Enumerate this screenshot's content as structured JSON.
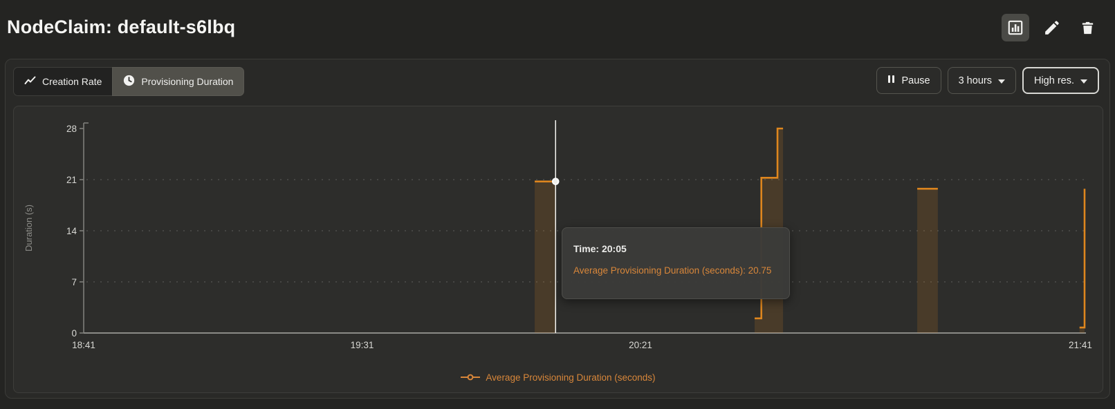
{
  "header": {
    "title": "NodeClaim: default-s6lbq",
    "actions": [
      {
        "name": "chart-view-button",
        "icon": "bar-chart-icon",
        "active": true
      },
      {
        "name": "edit-button",
        "icon": "pencil-icon"
      },
      {
        "name": "delete-button",
        "icon": "trash-icon"
      }
    ]
  },
  "toolbar": {
    "tabs": [
      {
        "label": "Creation Rate",
        "icon": "trend-line-icon",
        "active": false
      },
      {
        "label": "Provisioning Duration",
        "icon": "clock-icon",
        "active": true
      }
    ],
    "pause_label": "Pause",
    "range_label": "3 hours",
    "resolution_label": "High res."
  },
  "chart_data": {
    "type": "line",
    "subtype": "step-after with area fill",
    "title": "",
    "ylabel": "Duration (s)",
    "xlabel": "",
    "ylim": [
      0,
      28
    ],
    "yticks": [
      0,
      7,
      14,
      21,
      28
    ],
    "x_axis": {
      "start": "18:41",
      "end": "21:41",
      "range_minutes": 180
    },
    "xticks": [
      {
        "label": "18:41",
        "min": 0
      },
      {
        "label": "19:31",
        "min": 50
      },
      {
        "label": "20:21",
        "min": 100
      },
      {
        "label": "21:41",
        "min": 179
      }
    ],
    "grid": "dotted horizontal lines at 7, 14, 21",
    "legend_position": "bottom-center",
    "legend_label": "Average Provisioning Duration (seconds)",
    "series": [
      {
        "name": "Average Provisioning Duration (seconds)",
        "color": "#de861e",
        "fill_opacity": 0.16,
        "segments": [
          {
            "points": [
              [
                81.0,
                20.75
              ],
              [
                84.75,
                20.75
              ]
            ]
          },
          {
            "points": [
              [
                120.5,
                2
              ],
              [
                121.7,
                2
              ],
              [
                121.7,
                21.25
              ],
              [
                124.6,
                21.25
              ],
              [
                124.6,
                28
              ],
              [
                125.6,
                28
              ]
            ]
          },
          {
            "points": [
              [
                149.7,
                19.75
              ],
              [
                153.4,
                19.75
              ]
            ]
          },
          {
            "points": [
              [
                178.85,
                0.75
              ],
              [
                179.75,
                0.75
              ],
              [
                179.75,
                19.75
              ]
            ]
          }
        ]
      }
    ],
    "hover": {
      "time": "20:05",
      "min": 84.75,
      "value": 20.75
    }
  },
  "tooltip": {
    "time_line": "Time: 20:05",
    "value_line": "Average Provisioning Duration (seconds): 20.75"
  },
  "colors": {
    "accent_orange": "#de861e",
    "orange_text": "#d9873a",
    "axis": "#8a8a86",
    "tick_text": "#d8d8d4",
    "panel_bg": "#2d2d2b"
  }
}
